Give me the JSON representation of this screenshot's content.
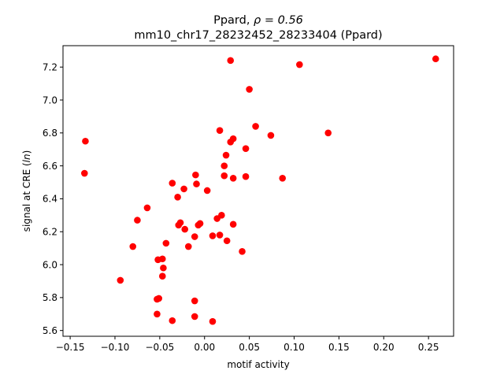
{
  "chart_data": {
    "type": "scatter",
    "title_main": "Ppard, ",
    "title_rho": "ρ = 0.56",
    "subtitle": "mm10_chr17_28232452_28233404 (Ppard)",
    "xlabel": "motif activity",
    "ylabel_prefix": "signal at CRE (",
    "ylabel_italic": "ln",
    "ylabel_suffix": ")",
    "xlim": [
      -0.158,
      0.278
    ],
    "ylim": [
      5.565,
      7.33
    ],
    "xticks": [
      -0.15,
      -0.1,
      -0.05,
      0.0,
      0.05,
      0.1,
      0.15,
      0.2,
      0.25
    ],
    "xtick_labels": [
      "−0.15",
      "−0.10",
      "−0.05",
      "0.00",
      "0.05",
      "0.10",
      "0.15",
      "0.20",
      "0.25"
    ],
    "yticks": [
      5.6,
      5.8,
      6.0,
      6.2,
      6.4,
      6.6,
      6.8,
      7.0,
      7.2
    ],
    "ytick_labels": [
      "5.6",
      "5.8",
      "6.0",
      "6.2",
      "6.4",
      "6.6",
      "6.8",
      "7.0",
      "7.2"
    ],
    "marker_color": "#ff0000",
    "grid": false,
    "points": [
      [
        0.029,
        7.24
      ],
      [
        0.106,
        7.215
      ],
      [
        0.258,
        7.25
      ],
      [
        0.05,
        7.065
      ],
      [
        -0.133,
        6.75
      ],
      [
        0.017,
        6.815
      ],
      [
        0.057,
        6.84
      ],
      [
        0.074,
        6.785
      ],
      [
        0.138,
        6.8
      ],
      [
        0.032,
        6.765
      ],
      [
        0.029,
        6.745
      ],
      [
        0.046,
        6.705
      ],
      [
        0.024,
        6.665
      ],
      [
        0.022,
        6.6
      ],
      [
        -0.134,
        6.555
      ],
      [
        0.022,
        6.54
      ],
      [
        0.032,
        6.525
      ],
      [
        0.046,
        6.535
      ],
      [
        0.087,
        6.525
      ],
      [
        -0.036,
        6.495
      ],
      [
        -0.01,
        6.545
      ],
      [
        -0.009,
        6.49
      ],
      [
        -0.023,
        6.46
      ],
      [
        0.003,
        6.45
      ],
      [
        -0.03,
        6.41
      ],
      [
        -0.064,
        6.345
      ],
      [
        -0.075,
        6.27
      ],
      [
        0.019,
        6.3
      ],
      [
        0.014,
        6.28
      ],
      [
        -0.027,
        6.255
      ],
      [
        -0.005,
        6.25
      ],
      [
        -0.007,
        6.24
      ],
      [
        -0.029,
        6.24
      ],
      [
        -0.022,
        6.215
      ],
      [
        0.032,
        6.245
      ],
      [
        -0.011,
        6.17
      ],
      [
        0.009,
        6.175
      ],
      [
        0.017,
        6.18
      ],
      [
        0.025,
        6.145
      ],
      [
        -0.043,
        6.13
      ],
      [
        -0.08,
        6.11
      ],
      [
        -0.018,
        6.11
      ],
      [
        0.042,
        6.08
      ],
      [
        -0.052,
        6.03
      ],
      [
        -0.047,
        6.035
      ],
      [
        -0.046,
        5.98
      ],
      [
        -0.047,
        5.93
      ],
      [
        -0.094,
        5.905
      ],
      [
        -0.053,
        5.79
      ],
      [
        -0.051,
        5.795
      ],
      [
        -0.011,
        5.78
      ],
      [
        -0.053,
        5.7
      ],
      [
        -0.011,
        5.685
      ],
      [
        -0.036,
        5.66
      ],
      [
        0.009,
        5.655
      ]
    ]
  }
}
